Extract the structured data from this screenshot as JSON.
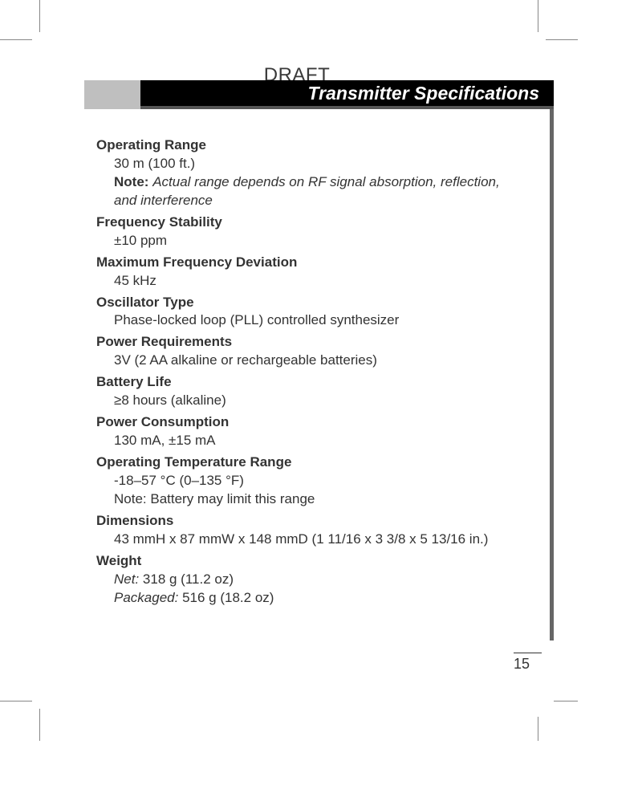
{
  "draft_label": "DRAFT",
  "header_title": "Transmitter Specifications",
  "page_number": "15",
  "specs": {
    "operating_range": {
      "heading": "Operating Range",
      "value": "30 m (100 ft.)",
      "note_label": "Note:",
      "note_text": "Actual range depends on RF signal absorption, reflection, and interference"
    },
    "frequency_stability": {
      "heading": "Frequency Stability",
      "value": "±10 ppm"
    },
    "max_freq_deviation": {
      "heading": "Maximum Frequency Deviation",
      "value": "45 kHz"
    },
    "oscillator_type": {
      "heading": "Oscillator Type",
      "value": "Phase-locked loop (PLL) controlled synthesizer"
    },
    "power_requirements": {
      "heading": "Power Requirements",
      "value": "3V (2 AA alkaline or rechargeable batteries)"
    },
    "battery_life": {
      "heading": "Battery Life",
      "value": "≥8 hours (alkaline)"
    },
    "power_consumption": {
      "heading": "Power Consumption",
      "value": "130 mA, ±15 mA"
    },
    "operating_temp": {
      "heading": "Operating Temperature Range",
      "value": "-18–57 °C (0–135 °F)",
      "subnote": "Note: Battery may limit this range"
    },
    "dimensions": {
      "heading": "Dimensions",
      "value": "43 mmH x 87 mmW x 148 mmD (1 11/16 x 3 3/8 x 5 13/16 in.)"
    },
    "weight": {
      "heading": "Weight",
      "net_label": "Net:",
      "net_value": "318 g (11.2 oz)",
      "packaged_label": "Packaged:",
      "packaged_value": "516 g (18.2 oz)"
    }
  }
}
